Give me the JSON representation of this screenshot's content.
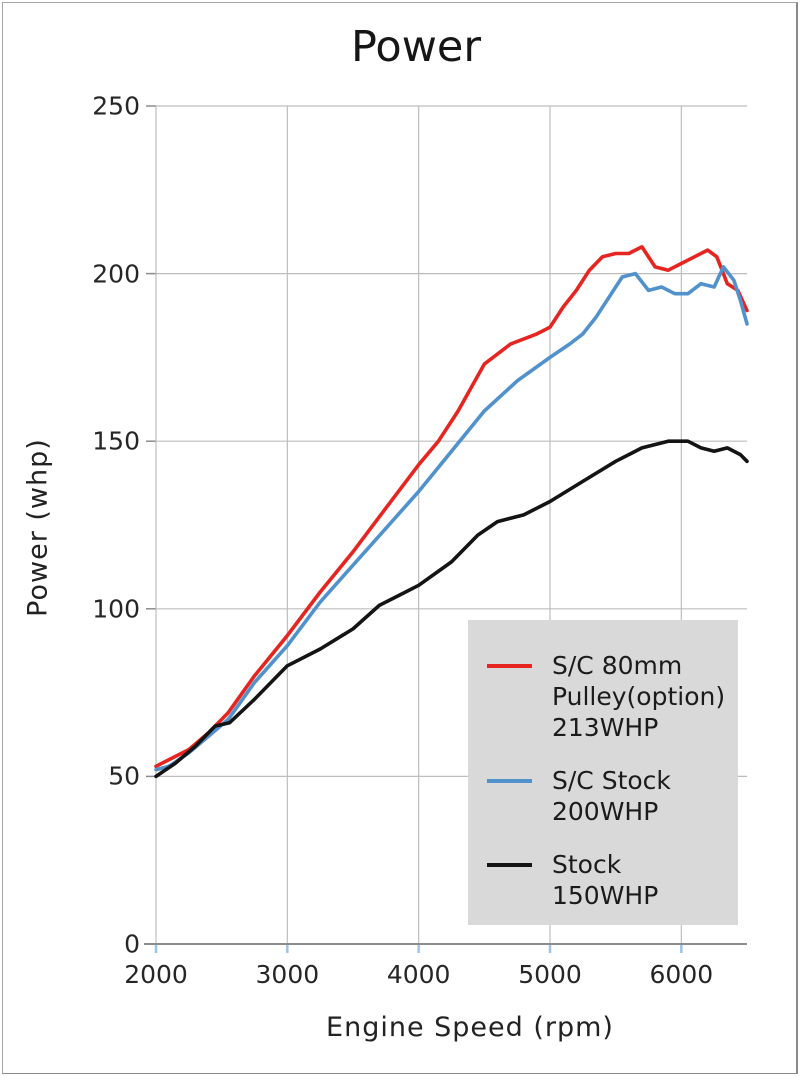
{
  "chart_data": {
    "type": "line",
    "title": "Power",
    "xlabel": "Engine Speed (rpm)",
    "ylabel": "Power (whp)",
    "xlim": [
      2000,
      6500
    ],
    "ylim": [
      0,
      250
    ],
    "x_ticks": [
      2000,
      3000,
      4000,
      5000,
      6000
    ],
    "y_ticks": [
      0,
      50,
      100,
      150,
      200,
      250
    ],
    "grid": true,
    "legend_position": "lower-right",
    "colors": {
      "grid": "#bdbdbd",
      "axis": "#8c8c8c",
      "x_tick_mark": "#9dc3e6",
      "legend_background": "#d9d9d9"
    },
    "series": [
      {
        "name": "S/C 80mm Pulley(option) 213WHP",
        "color": "#e62420",
        "points": [
          [
            2000,
            53
          ],
          [
            2100,
            55
          ],
          [
            2250,
            58
          ],
          [
            2400,
            63
          ],
          [
            2550,
            69
          ],
          [
            2750,
            80
          ],
          [
            3000,
            92
          ],
          [
            3250,
            105
          ],
          [
            3500,
            117
          ],
          [
            3750,
            130
          ],
          [
            4000,
            143
          ],
          [
            4150,
            150
          ],
          [
            4300,
            159
          ],
          [
            4500,
            173
          ],
          [
            4700,
            179
          ],
          [
            4900,
            182
          ],
          [
            5000,
            184
          ],
          [
            5100,
            190
          ],
          [
            5200,
            195
          ],
          [
            5300,
            201
          ],
          [
            5400,
            205
          ],
          [
            5500,
            206
          ],
          [
            5600,
            206
          ],
          [
            5700,
            208
          ],
          [
            5800,
            202
          ],
          [
            5900,
            201
          ],
          [
            6000,
            203
          ],
          [
            6100,
            205
          ],
          [
            6200,
            207
          ],
          [
            6270,
            205
          ],
          [
            6350,
            197
          ],
          [
            6430,
            195
          ],
          [
            6500,
            189
          ]
        ]
      },
      {
        "name": "S/C Stock 200WHP",
        "color": "#5191cc",
        "points": [
          [
            2000,
            52
          ],
          [
            2100,
            53
          ],
          [
            2250,
            57
          ],
          [
            2400,
            62
          ],
          [
            2550,
            67
          ],
          [
            2750,
            78
          ],
          [
            3000,
            89
          ],
          [
            3250,
            102
          ],
          [
            3500,
            113
          ],
          [
            3750,
            124
          ],
          [
            4000,
            135
          ],
          [
            4250,
            147
          ],
          [
            4500,
            159
          ],
          [
            4750,
            168
          ],
          [
            5000,
            175
          ],
          [
            5150,
            179
          ],
          [
            5250,
            182
          ],
          [
            5350,
            187
          ],
          [
            5450,
            193
          ],
          [
            5550,
            199
          ],
          [
            5650,
            200
          ],
          [
            5750,
            195
          ],
          [
            5850,
            196
          ],
          [
            5950,
            194
          ],
          [
            6050,
            194
          ],
          [
            6150,
            197
          ],
          [
            6250,
            196
          ],
          [
            6320,
            202
          ],
          [
            6400,
            198
          ],
          [
            6450,
            192
          ],
          [
            6500,
            185
          ]
        ]
      },
      {
        "name": "Stock 150WHP",
        "color": "#141414",
        "points": [
          [
            2000,
            50
          ],
          [
            2150,
            54
          ],
          [
            2300,
            59
          ],
          [
            2450,
            65
          ],
          [
            2560,
            66
          ],
          [
            2750,
            73
          ],
          [
            3000,
            83
          ],
          [
            3250,
            88
          ],
          [
            3500,
            94
          ],
          [
            3700,
            101
          ],
          [
            3850,
            104
          ],
          [
            4000,
            107
          ],
          [
            4250,
            114
          ],
          [
            4450,
            122
          ],
          [
            4600,
            126
          ],
          [
            4800,
            128
          ],
          [
            5000,
            132
          ],
          [
            5250,
            138
          ],
          [
            5500,
            144
          ],
          [
            5700,
            148
          ],
          [
            5900,
            150
          ],
          [
            6050,
            150
          ],
          [
            6150,
            148
          ],
          [
            6250,
            147
          ],
          [
            6350,
            148
          ],
          [
            6450,
            146
          ],
          [
            6500,
            144
          ]
        ]
      }
    ],
    "legend_entries": [
      {
        "lines": [
          "S/C 80mm",
          "Pulley(option)",
          "213WHP"
        ]
      },
      {
        "lines": [
          "S/C Stock",
          "200WHP"
        ]
      },
      {
        "lines": [
          "Stock",
          "150WHP"
        ]
      }
    ]
  }
}
